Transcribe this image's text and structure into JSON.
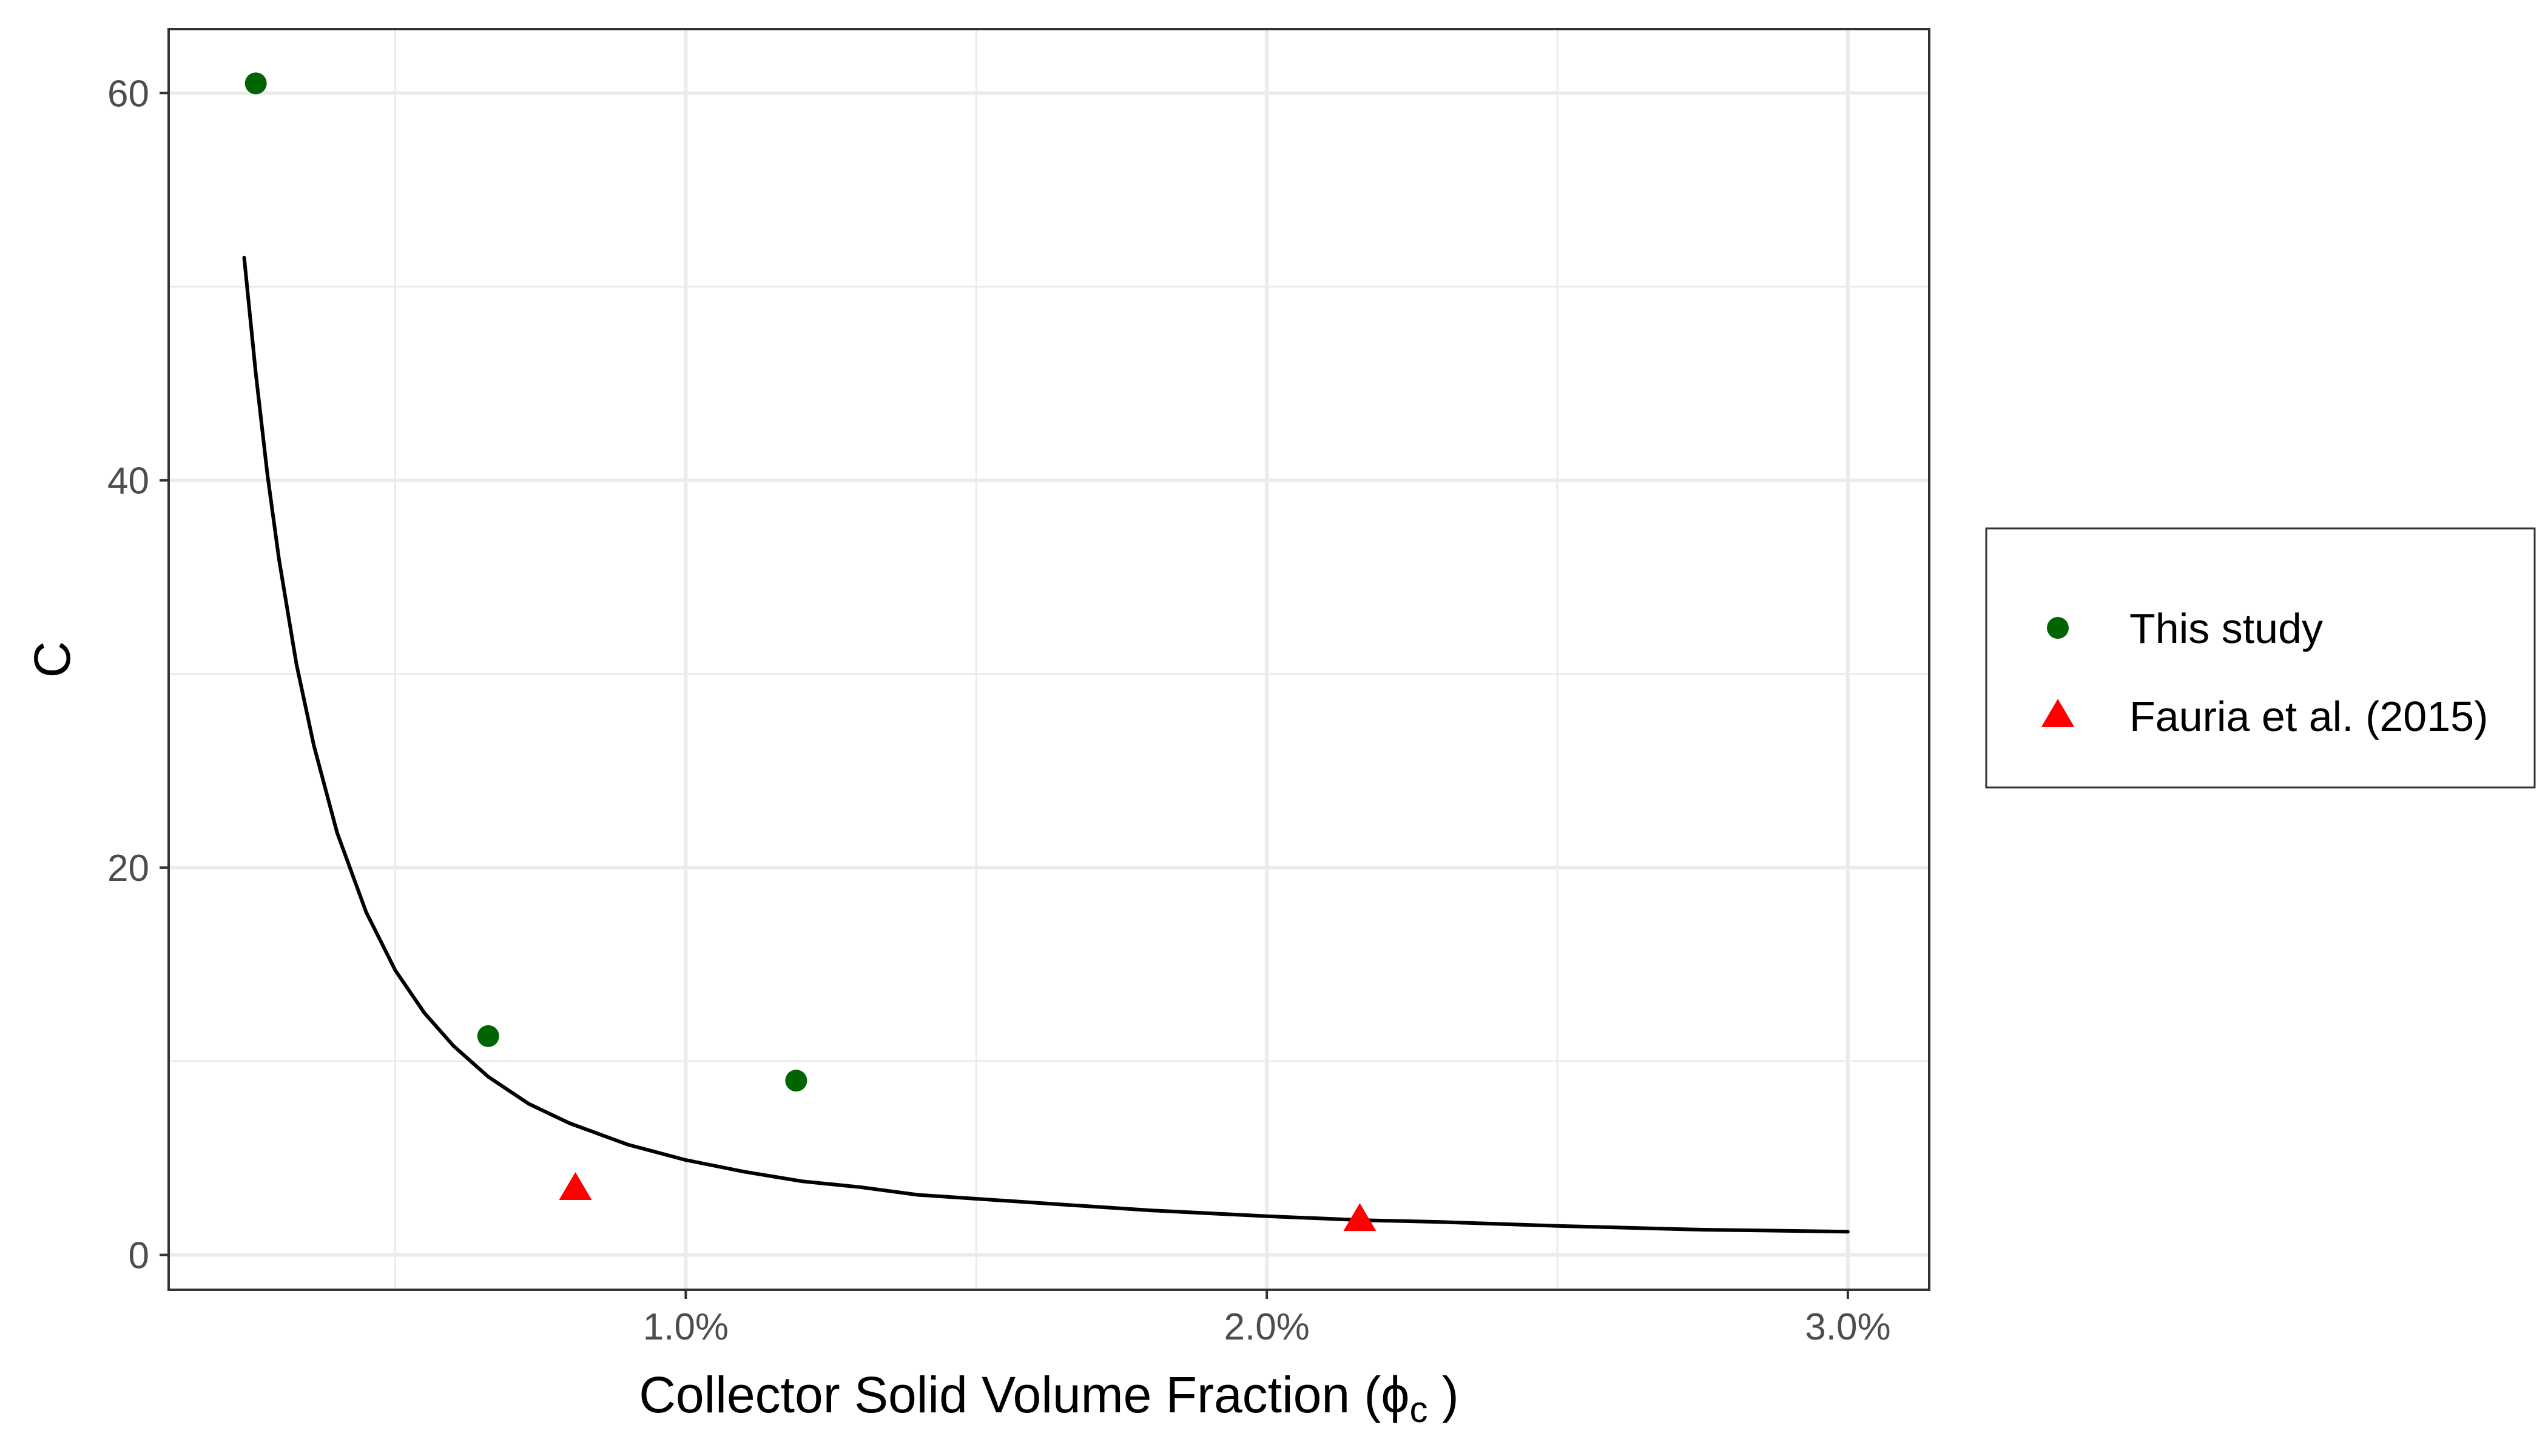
{
  "chart_data": {
    "type": "scatter",
    "title": "",
    "xlabel": "Collector Solid Volume Fraction (",
    "xlabel_symbol": "ϕ",
    "xlabel_subscript": "c",
    "xlabel_close": " )",
    "ylabel": "C",
    "xlim": [
      0.0011,
      0.0314
    ],
    "ylim": [
      -1.8,
      63.3
    ],
    "x_ticks": [
      0.01,
      0.02,
      0.03
    ],
    "x_tick_labels": [
      "1.0%",
      "2.0%",
      "3.0%"
    ],
    "x_minor_ticks": [
      0.005,
      0.015,
      0.025
    ],
    "y_ticks": [
      0,
      20,
      40,
      60
    ],
    "y_tick_labels": [
      "0",
      "20",
      "40",
      "60"
    ],
    "y_minor_ticks": [
      10,
      30,
      50
    ],
    "grid": true,
    "legend_position": "right",
    "series": [
      {
        "name": "This study",
        "marker": "circle",
        "color": "#006400",
        "points": [
          {
            "x": 0.0026,
            "y": 60.5
          },
          {
            "x": 0.0066,
            "y": 11.3
          },
          {
            "x": 0.0119,
            "y": 9.0
          }
        ]
      },
      {
        "name": "Fauria et al. (2015)",
        "marker": "triangle",
        "color": "#ff0000",
        "points": [
          {
            "x": 0.0081,
            "y": 3.4
          },
          {
            "x": 0.0216,
            "y": 1.8
          }
        ]
      }
    ],
    "fit_curve": {
      "color": "#000000",
      "points": [
        {
          "x": 0.0024,
          "y": 51.5
        },
        {
          "x": 0.0026,
          "y": 45.5
        },
        {
          "x": 0.0028,
          "y": 40.3
        },
        {
          "x": 0.003,
          "y": 35.9
        },
        {
          "x": 0.0033,
          "y": 30.5
        },
        {
          "x": 0.0036,
          "y": 26.3
        },
        {
          "x": 0.004,
          "y": 21.8
        },
        {
          "x": 0.0045,
          "y": 17.7
        },
        {
          "x": 0.005,
          "y": 14.7
        },
        {
          "x": 0.0055,
          "y": 12.5
        },
        {
          "x": 0.006,
          "y": 10.8
        },
        {
          "x": 0.0066,
          "y": 9.2
        },
        {
          "x": 0.0073,
          "y": 7.8
        },
        {
          "x": 0.008,
          "y": 6.8
        },
        {
          "x": 0.009,
          "y": 5.7
        },
        {
          "x": 0.01,
          "y": 4.9
        },
        {
          "x": 0.011,
          "y": 4.3
        },
        {
          "x": 0.012,
          "y": 3.8
        },
        {
          "x": 0.013,
          "y": 3.5
        },
        {
          "x": 0.014,
          "y": 3.1
        },
        {
          "x": 0.015,
          "y": 2.9
        },
        {
          "x": 0.0165,
          "y": 2.6
        },
        {
          "x": 0.018,
          "y": 2.3
        },
        {
          "x": 0.02,
          "y": 2.0
        },
        {
          "x": 0.0216,
          "y": 1.8
        },
        {
          "x": 0.023,
          "y": 1.7
        },
        {
          "x": 0.025,
          "y": 1.5
        },
        {
          "x": 0.0275,
          "y": 1.3
        },
        {
          "x": 0.03,
          "y": 1.2
        }
      ]
    }
  }
}
